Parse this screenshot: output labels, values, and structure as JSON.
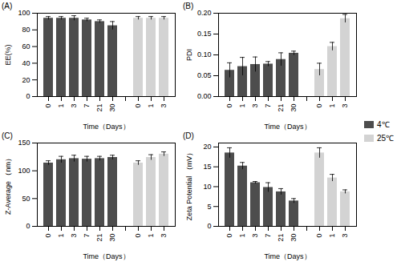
{
  "chart_data": [
    {
      "type": "bar",
      "title": "(A)",
      "x_label": "Time（Days）",
      "y_label": "EE(%)",
      "categories": [
        "0",
        "1",
        "3",
        "7",
        "21",
        "30",
        null,
        "0",
        "1",
        "3"
      ],
      "ylim": [
        0,
        100
      ],
      "yticks": [
        0,
        20,
        40,
        60,
        80,
        100
      ],
      "grid": false,
      "series": [
        {
          "name": "4℃",
          "color": "#4d4d4d",
          "values": [
            94,
            94,
            94,
            92,
            90,
            85,
            null,
            null,
            null,
            null
          ],
          "errors": [
            2,
            2,
            3,
            2,
            2,
            5,
            null,
            null,
            null,
            null
          ]
        },
        {
          "name": "25℃",
          "color": "#d3d3d3",
          "values": [
            null,
            null,
            null,
            null,
            null,
            null,
            null,
            94,
            94,
            94
          ],
          "errors": [
            null,
            null,
            null,
            null,
            null,
            null,
            null,
            2,
            2,
            2
          ]
        }
      ]
    },
    {
      "type": "bar",
      "title": "(B)",
      "x_label": "Time（Days）",
      "y_label": "PDI",
      "categories": [
        "0",
        "1",
        "3",
        "7",
        "21",
        "30",
        null,
        "0",
        "1",
        "3"
      ],
      "ylim": [
        0,
        0.2
      ],
      "yticks": [
        {
          "value": 0,
          "label": "0.00"
        },
        {
          "value": 0.05,
          "label": "0.05"
        },
        {
          "value": 0.1,
          "label": "0.10"
        },
        {
          "value": 0.15,
          "label": "0.15"
        },
        {
          "value": 0.2,
          "label": "0.20"
        }
      ],
      "grid": false,
      "series": [
        {
          "name": "4℃",
          "color": "#4d4d4d",
          "values": [
            0.063,
            0.072,
            0.077,
            0.078,
            0.089,
            0.104,
            null,
            null,
            null,
            null
          ],
          "errors": [
            0.018,
            0.022,
            0.018,
            0.006,
            0.016,
            0.005,
            null,
            null,
            null,
            null
          ]
        },
        {
          "name": "25℃",
          "color": "#d3d3d3",
          "values": [
            null,
            null,
            null,
            null,
            null,
            null,
            null,
            0.065,
            0.12,
            0.187
          ],
          "errors": [
            null,
            null,
            null,
            null,
            null,
            null,
            null,
            0.015,
            0.01,
            0.01
          ]
        }
      ]
    },
    {
      "type": "bar",
      "title": "(C)",
      "x_label": "Time（Days）",
      "y_label": "Z-Average （nm）",
      "categories": [
        "0",
        "1",
        "3",
        "7",
        "21",
        "30",
        null,
        "0",
        "1",
        "3"
      ],
      "ylim": [
        0,
        150
      ],
      "yticks": [
        0,
        50,
        100,
        150
      ],
      "grid": false,
      "series": [
        {
          "name": "4℃",
          "color": "#4d4d4d",
          "values": [
            114,
            120,
            122,
            121,
            122,
            124,
            null,
            null,
            null,
            null
          ],
          "errors": [
            4,
            6,
            6,
            5,
            4,
            4,
            null,
            null,
            null,
            null
          ]
        },
        {
          "name": "25℃",
          "color": "#d3d3d3",
          "values": [
            null,
            null,
            null,
            null,
            null,
            null,
            null,
            114,
            124,
            130
          ],
          "errors": [
            null,
            null,
            null,
            null,
            null,
            null,
            null,
            4,
            5,
            4
          ]
        }
      ]
    },
    {
      "type": "bar",
      "title": "(D)",
      "x_label": "Time（Days）",
      "y_label": "Zeta Potential （mV）",
      "categories": [
        "0",
        "1",
        "3",
        "7",
        "21",
        "30",
        null,
        "0",
        "1",
        "3"
      ],
      "ylim": [
        0,
        21
      ],
      "yticks": [
        0,
        5,
        10,
        15,
        20
      ],
      "grid": false,
      "legend": "right",
      "series": [
        {
          "name": "4℃",
          "color": "#4d4d4d",
          "values": [
            18.5,
            15.2,
            11.0,
            9.8,
            8.7,
            6.4,
            null,
            null,
            null,
            null
          ],
          "errors": [
            1.3,
            0.9,
            0.3,
            1.2,
            0.8,
            0.6,
            null,
            null,
            null,
            null
          ]
        },
        {
          "name": "25℃",
          "color": "#d3d3d3",
          "values": [
            null,
            null,
            null,
            null,
            null,
            null,
            null,
            18.5,
            12.2,
            8.7
          ],
          "errors": [
            null,
            null,
            null,
            null,
            null,
            null,
            null,
            1.3,
            0.9,
            0.5
          ]
        }
      ]
    }
  ]
}
